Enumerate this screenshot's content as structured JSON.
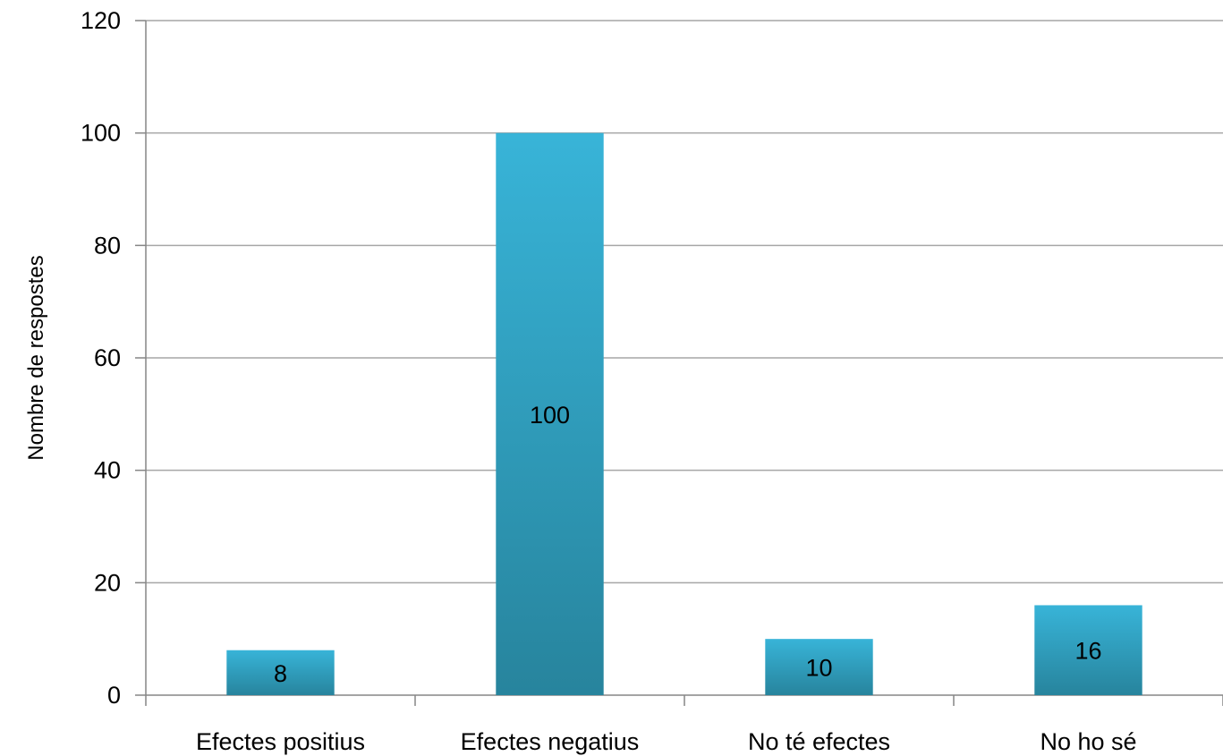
{
  "chart_data": {
    "type": "bar",
    "categories": [
      "Efectes positius",
      "Efectes negatius",
      "No té efectes",
      "No ho sé"
    ],
    "values": [
      8,
      100,
      10,
      16
    ],
    "data_labels": [
      "8",
      "100",
      "10",
      "16"
    ],
    "ylabel": "Nombre de respostes",
    "xlabel": "",
    "ylim": [
      0,
      120
    ],
    "yticks": [
      0,
      20,
      40,
      60,
      80,
      100,
      120
    ],
    "ytick_labels": [
      "0",
      "20",
      "40",
      "60",
      "80",
      "100",
      "120"
    ],
    "grid": true,
    "legend": "none",
    "bar_color_top": "#38b4d8",
    "bar_color_bottom": "#27849d",
    "grid_color": "#a6a6a6"
  }
}
